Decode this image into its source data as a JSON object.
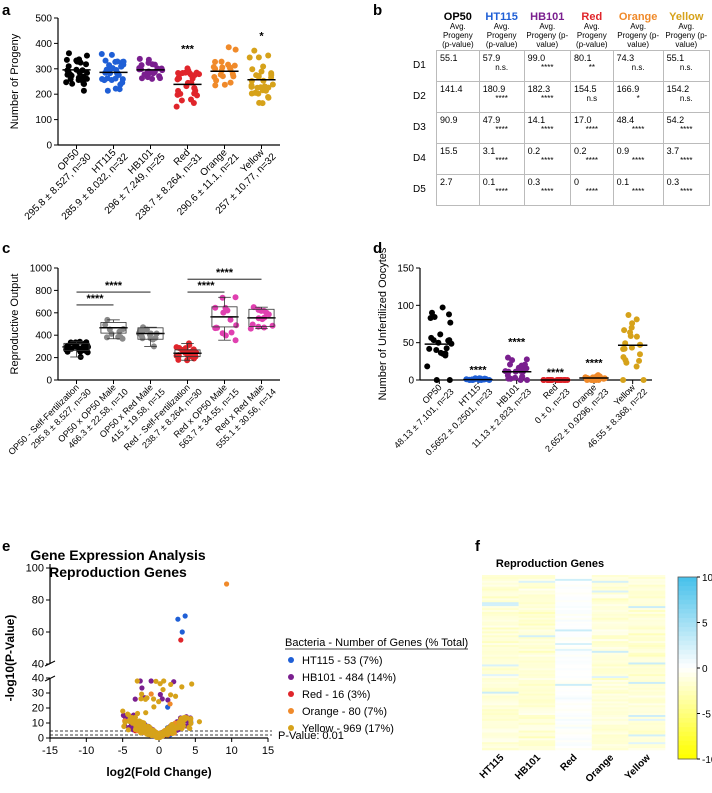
{
  "panel_labels": [
    "a",
    "b",
    "c",
    "d",
    "e",
    "f"
  ],
  "colors": {
    "OP50": "#000000",
    "HT115": "#1f5fd6",
    "HB101": "#7a1f8f",
    "Red": "#e0252b",
    "Orange": "#f08a2a",
    "Yellow": "#d6a21a",
    "Gray": "#8a8a8a",
    "Pink": "#e040b0",
    "Blue": "#3b5cc4"
  },
  "chart_data": [
    {
      "id": "a",
      "type": "scatter",
      "ylabel": "Number of Progeny",
      "ylim": [
        0,
        500
      ],
      "yticks": [
        0,
        100,
        200,
        300,
        400,
        500
      ],
      "categories": [
        "OP50",
        "HT115",
        "HB101",
        "Red",
        "Orange",
        "Yellow"
      ],
      "tick_labels": [
        "OP50",
        "HT115",
        "HB101",
        "Red",
        "Orange",
        "Yellow"
      ],
      "sublabels": [
        "295.8 ± 8.527, n=30",
        "285.9 ± 8.032, n=32",
        "296 ± 7.249, n=25",
        "238.7 ± 8.264, n=31",
        "290.6 ± 11.1, n=21",
        "257 ± 10.77, n=32"
      ],
      "means": [
        295.8,
        285.9,
        296,
        238.7,
        290.6,
        257
      ],
      "sd": [
        46,
        45,
        36,
        46,
        51,
        61
      ],
      "n": [
        30,
        32,
        25,
        31,
        21,
        32
      ],
      "annotations": [
        {
          "index": 3,
          "text": "***"
        },
        {
          "index": 5,
          "text": "*"
        }
      ]
    },
    {
      "id": "b",
      "type": "table",
      "columns": [
        {
          "name": "OP50",
          "sub": "Avg. Progeny (p-value)"
        },
        {
          "name": "HT115",
          "sub": "Avg. Progeny (p-value)"
        },
        {
          "name": "HB101",
          "sub": "Avg. Progeny (p-value)"
        },
        {
          "name": "Red",
          "sub": "Avg. Progeny (p-value)"
        },
        {
          "name": "Orange",
          "sub": "Avg. Progeny (p-value)"
        },
        {
          "name": "Yellow",
          "sub": "Avg. Progeny (p-value)"
        }
      ],
      "rows": [
        {
          "label": "D1",
          "cells": [
            [
              "55.1",
              ""
            ],
            [
              "57.9",
              "n.s."
            ],
            [
              "99.0",
              "****"
            ],
            [
              "80.1",
              "**"
            ],
            [
              "74.3",
              "n.s."
            ],
            [
              "55.1",
              "n.s."
            ]
          ]
        },
        {
          "label": "D2",
          "cells": [
            [
              "141.4",
              ""
            ],
            [
              "180.9",
              "****"
            ],
            [
              "182.3",
              "****"
            ],
            [
              "154.5",
              "n.s"
            ],
            [
              "166.9",
              "*"
            ],
            [
              "154.2",
              "n.s."
            ]
          ]
        },
        {
          "label": "D3",
          "cells": [
            [
              "90.9",
              ""
            ],
            [
              "47.9",
              "****"
            ],
            [
              "14.1",
              "****"
            ],
            [
              "17.0",
              "****"
            ],
            [
              "48.4",
              "****"
            ],
            [
              "54.2",
              "****"
            ]
          ]
        },
        {
          "label": "D4",
          "cells": [
            [
              "15.5",
              ""
            ],
            [
              "3.1",
              "****"
            ],
            [
              "0.2",
              "****"
            ],
            [
              "0.2",
              "****"
            ],
            [
              "0.9",
              "****"
            ],
            [
              "3.7",
              "****"
            ]
          ]
        },
        {
          "label": "D5",
          "cells": [
            [
              "2.7",
              ""
            ],
            [
              "0.1",
              "****"
            ],
            [
              "0.3",
              "****"
            ],
            [
              "0",
              "****"
            ],
            [
              "0.1",
              "****"
            ],
            [
              "0.3",
              "****"
            ]
          ]
        }
      ]
    },
    {
      "id": "c",
      "type": "scatter",
      "ylabel": "Reproductive Output",
      "ylim": [
        0,
        1000
      ],
      "yticks": [
        0,
        200,
        400,
        600,
        800,
        1000
      ],
      "categories": [
        "OP50 - Self-Fertilization",
        "OP50 x OP50 Male",
        "OP50 x Red Male",
        "Red - Self-Fertilization",
        "Red x OP50 Male",
        "Red x Red Male"
      ],
      "tick_labels": [
        "OP50 - Self-Fertilization",
        "OP50 x OP50 Male",
        "OP50 x Red Male",
        "Red - Self-Fertilization",
        "Red x OP50 Male",
        "Red x Red Male"
      ],
      "sublabels": [
        "295.8 ± 8.527, n=30",
        "466.3 ± 22.58, n=10",
        "415 ± 19.58, n=15",
        "238.7 ± 8.264, n=30",
        "563.7 ± 34.55, n=15",
        "555.1 ± 30.56, n=14"
      ],
      "means": [
        295.8,
        466.3,
        415,
        238.7,
        563.7,
        555.1
      ],
      "sd": [
        47,
        71,
        76,
        45,
        134,
        114
      ],
      "n": [
        30,
        10,
        15,
        30,
        15,
        14
      ],
      "brackets": [
        {
          "from": 0,
          "to": 1,
          "y": 670,
          "text": "****"
        },
        {
          "from": 0,
          "to": 2,
          "y": 785,
          "text": "****"
        },
        {
          "from": 3,
          "to": 4,
          "y": 785,
          "text": "****"
        },
        {
          "from": 3,
          "to": 5,
          "y": 900,
          "text": "****"
        }
      ]
    },
    {
      "id": "d",
      "type": "scatter",
      "ylabel": "Number of Unfertilized Oocytes",
      "ylim": [
        0,
        150
      ],
      "yticks": [
        0,
        50,
        100,
        150
      ],
      "categories": [
        "OP50",
        "HT115",
        "HB101",
        "Red",
        "Orange",
        "Yellow"
      ],
      "tick_labels": [
        "OP50",
        "HT115",
        "HB101",
        "Red",
        "Orange",
        "Yellow"
      ],
      "sublabels": [
        "48.13 ± 7.101, n=23",
        "0.5652 ± 0.2501, n=23",
        "11.13 ± 2.823, n=23",
        "0 ± 0, n=23",
        "2.652 ± 0.9296, n=23",
        "46.55 ± 8.368, n=22"
      ],
      "means": [
        48.13,
        0.5652,
        11.13,
        0,
        2.652,
        46.55
      ],
      "sd": [
        34,
        1.2,
        13.5,
        0,
        4.5,
        39
      ],
      "n": [
        23,
        23,
        23,
        23,
        23,
        22
      ],
      "annotations": [
        {
          "index": 1,
          "text": "****"
        },
        {
          "index": 2,
          "text": "****"
        },
        {
          "index": 3,
          "text": "****"
        },
        {
          "index": 4,
          "text": "****"
        }
      ]
    },
    {
      "id": "e",
      "type": "scatter",
      "title": "Gene Expression Analysis",
      "subtitle": "Reproduction Genes",
      "xlabel": "log2(Fold Change)",
      "ylabel": "-log10(P-Value)",
      "xlim": [
        -15,
        15
      ],
      "xticks": [
        -15,
        -10,
        -5,
        0,
        5,
        10,
        15
      ],
      "yticks_lower": [
        0,
        10,
        20,
        30,
        40
      ],
      "yticks_upper": [
        40,
        60,
        80,
        100
      ],
      "threshold_label": "P-Value: 0.01",
      "legend_title": "Bacteria - Number of Genes (% Total)",
      "series": [
        {
          "name": "HT115 - 53 (7%)",
          "key": "HT115"
        },
        {
          "name": "HB101 - 484 (14%)",
          "key": "HB101"
        },
        {
          "name": "Red - 16 (3%)",
          "key": "Red"
        },
        {
          "name": "Orange - 80 (7%)",
          "key": "Orange"
        },
        {
          "name": "Yellow - 969 (17%)",
          "key": "Yellow"
        }
      ]
    },
    {
      "id": "f",
      "type": "heatmap",
      "title": "Reproduction Genes",
      "columns": [
        "HT115",
        "HB101",
        "Red",
        "Orange",
        "Yellow"
      ],
      "colorbar_ticks": [
        10,
        5,
        0,
        -5,
        -10
      ],
      "vmin": -10,
      "vmax": 10
    }
  ]
}
